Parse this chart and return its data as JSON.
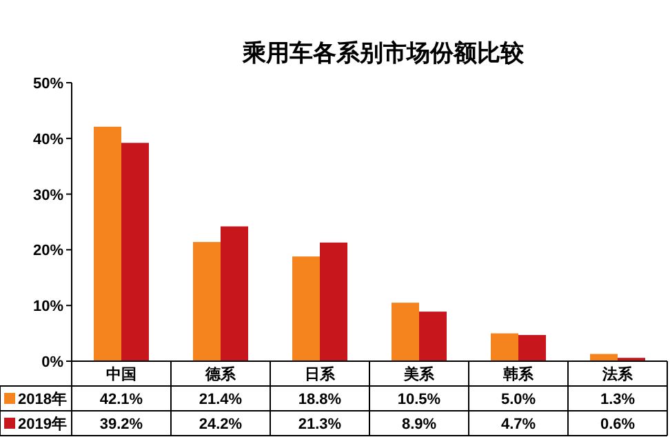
{
  "chart_data": {
    "type": "bar",
    "title": "乘用车各系别市场份额比较",
    "categories": [
      "中国",
      "德系",
      "日系",
      "美系",
      "韩系",
      "法系"
    ],
    "series": [
      {
        "name": "2018年",
        "color": "#f5841f",
        "values": [
          42.1,
          21.4,
          18.8,
          10.5,
          5.0,
          1.3
        ],
        "value_labels": [
          "42.1%",
          "21.4%",
          "18.8%",
          "10.5%",
          "5.0%",
          "1.3%"
        ]
      },
      {
        "name": "2019年",
        "color": "#c8161d",
        "values": [
          39.2,
          24.2,
          21.3,
          8.9,
          4.7,
          0.6
        ],
        "value_labels": [
          "39.2%",
          "24.2%",
          "21.3%",
          "8.9%",
          "4.7%",
          "0.6%"
        ]
      }
    ],
    "ylim": [
      0,
      50
    ],
    "yticks": [
      {
        "value": 0,
        "label": "0%"
      },
      {
        "value": 10,
        "label": "10%"
      },
      {
        "value": 20,
        "label": "20%"
      },
      {
        "value": 30,
        "label": "30%"
      },
      {
        "value": 40,
        "label": "40%"
      },
      {
        "value": 50,
        "label": "50%"
      }
    ],
    "legend": "bottom"
  }
}
